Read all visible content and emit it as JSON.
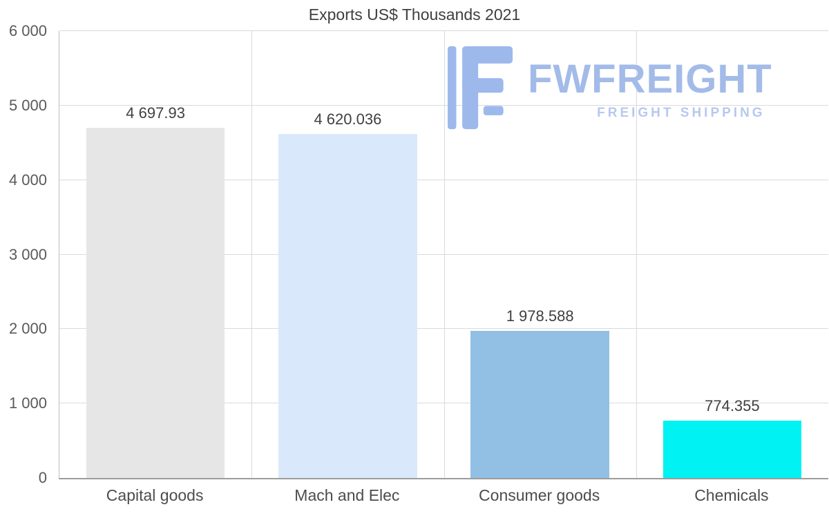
{
  "page": {
    "title": "Exports US$ Thousands 2021"
  },
  "logo": {
    "name": "FWFREIGHT",
    "tagline": "FREIGHT SHIPPING",
    "color": "#a3bbe8",
    "icon": "stylized-f-blocks"
  },
  "chart_data": {
    "type": "bar",
    "title": "Exports US$ Thousands 2021",
    "categories": [
      "Capital goods",
      "Mach and Elec",
      "Consumer goods",
      "Chemicals"
    ],
    "values": [
      4697.93,
      4620.036,
      1978.588,
      774.355
    ],
    "value_labels": [
      "4 697.93",
      "4 620.036",
      "1 978.588",
      "774.355"
    ],
    "bar_colors": [
      "#e6e6e6",
      "#d9e9fb",
      "#92bfe4",
      "#00f2f2"
    ],
    "xlabel": "",
    "ylabel": "",
    "ylim": [
      0,
      6000
    ],
    "yticks": [
      0,
      1000,
      2000,
      3000,
      4000,
      5000,
      6000
    ],
    "ytick_labels": [
      "0",
      "1 000",
      "2 000",
      "3 000",
      "4 000",
      "5 000",
      "6 000"
    ],
    "grid": true,
    "legend": false
  }
}
